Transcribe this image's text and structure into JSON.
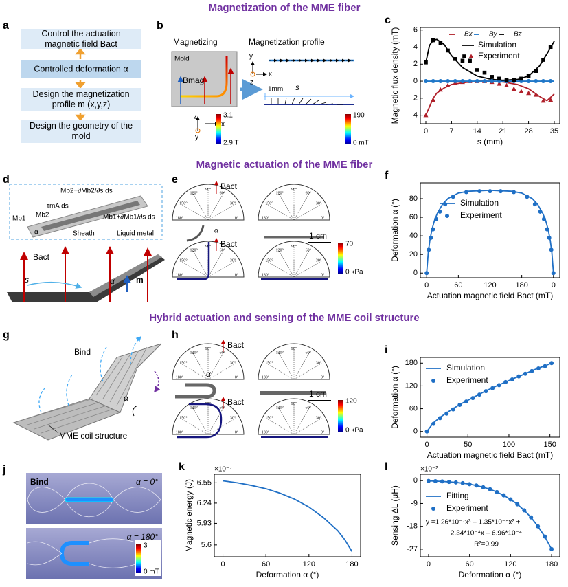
{
  "headings": [
    "Magnetization of the MME fiber",
    "Magnetic actuation of the MME fiber",
    "Hybrid actuation and sensing of the MME coil structure"
  ],
  "panels": {
    "a": {
      "label": "a",
      "steps": [
        [
          "Control the actuation",
          "magnetic field Bact"
        ],
        [
          "Controlled deformation α"
        ],
        [
          "Design the magnetization",
          "profile m (x,y,z)"
        ],
        [
          "Design the geometry of the",
          "mold"
        ]
      ]
    },
    "b": {
      "label": "b",
      "titles": [
        "Magnetizing",
        "Magnetization profile"
      ],
      "mold": "Mold",
      "field": "Bmag",
      "axes": [
        "z",
        "x",
        "y"
      ],
      "colorbar1": [
        "3.1",
        "2.9 T"
      ],
      "colorbar2": [
        "190",
        "0 mT"
      ],
      "scale": "1mm",
      "arc": "s"
    },
    "d": {
      "label": "d",
      "inset": [
        "Mb1",
        "Mb2",
        "Mb2+∂Mb2/∂s ds",
        "τmA ds",
        "Mb1+∂Mb1/∂s ds",
        "α",
        "Sheath",
        "Liquid metal"
      ],
      "field": "Bact",
      "arc": "s",
      "angle": "α",
      "moment": "m"
    },
    "e": {
      "label": "e",
      "angles": [
        "180°",
        "150°",
        "120°",
        "90°",
        "60°",
        "30°",
        "0°"
      ],
      "field": "Bact",
      "angle": "α",
      "scale": "1 cm",
      "colorbar": [
        "70",
        "0 kPa"
      ]
    },
    "g": {
      "label": "g",
      "field": "Bind",
      "angle": "α",
      "name": "MME coil structure"
    },
    "h": {
      "label": "h",
      "field": "Bact",
      "angle": "α",
      "scale": "1 cm",
      "colorbar": [
        "120",
        "0 kPa"
      ]
    },
    "j": {
      "label": "j",
      "field": "Bind",
      "states": [
        "α = 0°",
        "α = 180°"
      ],
      "colorbar": [
        "3",
        "0 mT"
      ]
    }
  },
  "chart_data": [
    {
      "type": "line",
      "panel_label": "c",
      "xlabel": "s (mm)",
      "ylabel": "Magnetic flux density (mT)",
      "xlim": [
        -1.5,
        36.5
      ],
      "xticks": [
        0,
        7,
        14,
        21,
        28,
        35
      ],
      "ylim": [
        -5,
        6.3
      ],
      "yticks": [
        -4,
        -2,
        0,
        2,
        4,
        6
      ],
      "legend_labels": [
        "Simulation",
        "Experiment"
      ],
      "series": [
        {
          "name": "Bx",
          "color": "#b0202a",
          "style": "line",
          "x": [
            0,
            1,
            2,
            3,
            5,
            7,
            10,
            14,
            18,
            21,
            25,
            28,
            31,
            33,
            35
          ],
          "values": [
            -4.0,
            -3.0,
            -2.0,
            -1.4,
            -0.8,
            -0.4,
            -0.2,
            0,
            0,
            -0.1,
            -0.4,
            -0.9,
            -1.8,
            -2.3,
            -1.5
          ]
        },
        {
          "name": "By",
          "color": "#1f77c8",
          "style": "line",
          "x": [
            0,
            1,
            2,
            3,
            5,
            7,
            10,
            14,
            18,
            21,
            25,
            28,
            31,
            33,
            35
          ],
          "values": [
            0,
            0,
            0,
            0,
            0,
            0,
            0,
            0,
            0,
            0,
            0,
            0,
            0,
            0,
            0
          ]
        },
        {
          "name": "Bz",
          "color": "#000000",
          "style": "line",
          "x": [
            0,
            1,
            2,
            3,
            5,
            7,
            10,
            14,
            18,
            21,
            25,
            28,
            31,
            33,
            35
          ],
          "values": [
            2.2,
            4.2,
            4.8,
            4.9,
            4.3,
            3.0,
            1.6,
            0.6,
            0.2,
            0.1,
            0.2,
            0.6,
            1.8,
            3.2,
            4.7
          ]
        },
        {
          "color": "#b0202a",
          "style": "markers",
          "marker": "triangle",
          "x": [
            0,
            2,
            4,
            6,
            8,
            10,
            12,
            14,
            16,
            18,
            20,
            22,
            24,
            26,
            28,
            30,
            32,
            34
          ],
          "values": [
            -4.0,
            -2.2,
            -1.0,
            -0.5,
            -0.2,
            -0.1,
            0,
            0,
            0,
            -0.1,
            -0.3,
            -0.5,
            -0.9,
            -1.2,
            -1.4,
            -1.6,
            -2.3,
            -2.2
          ]
        },
        {
          "color": "#1f77c8",
          "style": "markers",
          "marker": "circle",
          "x": [
            0,
            2,
            4,
            6,
            8,
            10,
            12,
            14,
            16,
            18,
            20,
            22,
            24,
            26,
            28,
            30,
            32,
            34
          ],
          "values": [
            0,
            0,
            0,
            0,
            0,
            0,
            0,
            0,
            0,
            0,
            0,
            0,
            0,
            0,
            0,
            0,
            0,
            0
          ]
        },
        {
          "color": "#000000",
          "style": "markers",
          "marker": "square",
          "x": [
            0,
            2,
            4,
            6,
            8,
            10,
            12,
            14,
            16,
            18,
            20,
            22,
            24,
            26,
            28,
            30,
            32,
            34
          ],
          "values": [
            2.2,
            4.8,
            4.5,
            3.6,
            2.6,
            2.4,
            2.4,
            1.3,
            1.0,
            0.5,
            0.3,
            0.1,
            0.1,
            0.3,
            0.6,
            1.2,
            2.5,
            4.0
          ]
        }
      ]
    },
    {
      "type": "line",
      "panel_label": "f",
      "xlabel": "Actuation magnetic field Bact (mT)",
      "ylabel": "Deformation α (°)",
      "xlim": [
        -12,
        252
      ],
      "xticks": [
        0,
        60,
        120,
        180,
        {
          "value": 240,
          "label": "0"
        }
      ],
      "ylim": [
        -5,
        97
      ],
      "yticks": [
        0,
        20,
        40,
        60,
        80
      ],
      "series": [
        {
          "name": "Simulation",
          "color": "#1f6fc5",
          "style": "line",
          "x": [
            0,
            3,
            6,
            10,
            15,
            20,
            30,
            40,
            60,
            80,
            120,
            160,
            180,
            200,
            210,
            220,
            225,
            230,
            234,
            237,
            240
          ],
          "values": [
            0,
            22,
            35,
            47,
            57,
            64,
            74,
            80,
            86,
            88,
            89,
            88,
            86,
            80,
            74,
            64,
            57,
            47,
            35,
            22,
            0
          ]
        },
        {
          "name": "Experiment",
          "color": "#1f6fc5",
          "style": "markers",
          "marker": "circle",
          "x": [
            0,
            4,
            8,
            12,
            18,
            25,
            35,
            50,
            75,
            100,
            120,
            140,
            165,
            190,
            205,
            215,
            222,
            228,
            232,
            236,
            240
          ],
          "values": [
            0,
            25,
            38,
            47,
            58,
            66,
            74,
            82,
            87,
            88,
            88,
            88,
            87,
            82,
            74,
            66,
            58,
            47,
            38,
            25,
            0
          ]
        }
      ]
    },
    {
      "type": "line",
      "panel_label": "i",
      "xlabel": "Actuation magnetic field Bact (mT)",
      "ylabel": "Deformation α (°)",
      "xlim": [
        -8,
        162
      ],
      "xticks": [
        0,
        50,
        100,
        150
      ],
      "ylim": [
        -15,
        195
      ],
      "yticks": [
        0,
        60,
        120,
        180
      ],
      "series": [
        {
          "name": "Simulation",
          "color": "#1f6fc5",
          "style": "line",
          "x": [
            0,
            8,
            16,
            24,
            32,
            40,
            48,
            56,
            64,
            72,
            80,
            88,
            96,
            104,
            112,
            120,
            128,
            136,
            144,
            152
          ],
          "values": [
            0,
            23,
            37,
            49,
            60,
            71,
            80,
            89,
            98,
            107,
            115,
            123,
            130,
            138,
            145,
            152,
            160,
            167,
            173,
            180
          ]
        },
        {
          "name": "Experiment",
          "color": "#1f6fc5",
          "style": "markers",
          "marker": "circle",
          "x": [
            0,
            8,
            16,
            24,
            32,
            40,
            48,
            56,
            64,
            72,
            80,
            88,
            96,
            104,
            112,
            120,
            128,
            136,
            144,
            152
          ],
          "values": [
            0,
            20,
            35,
            47,
            58,
            70,
            79,
            88,
            97,
            106,
            114,
            122,
            130,
            137,
            145,
            152,
            159,
            166,
            172,
            180
          ]
        }
      ]
    },
    {
      "type": "line",
      "panel_label": "k",
      "xlabel": "Deformation α (°)",
      "ylabel": "Magnetic energy (J)",
      "offset_label": "×10⁻⁷",
      "xlim": [
        -12,
        192
      ],
      "xticks": [
        0,
        60,
        120,
        180
      ],
      "ylim": [
        5.42,
        6.68
      ],
      "yticks": [
        5.6,
        5.93,
        6.24,
        6.55
      ],
      "series": [
        {
          "color": "#1f6fc5",
          "style": "line",
          "x": [
            0,
            20,
            40,
            60,
            80,
            100,
            120,
            140,
            160,
            170,
            180
          ],
          "values": [
            6.58,
            6.55,
            6.51,
            6.46,
            6.39,
            6.3,
            6.18,
            6.02,
            5.82,
            5.68,
            5.5
          ]
        }
      ]
    },
    {
      "type": "line",
      "panel_label": "l",
      "xlabel": "Deformation α (°)",
      "ylabel": "Sensing ΔL (μH)",
      "offset_label": "×10⁻²",
      "xlim": [
        -12,
        192
      ],
      "xticks": [
        0,
        60,
        120,
        180
      ],
      "ylim": [
        -30,
        2.5
      ],
      "yticks": [
        0,
        -9,
        -18,
        -27
      ],
      "annotation": [
        "y =1.26*10⁻⁷x³ – 1.35*10⁻⁵x² +",
        "2.34*10⁻⁴x – 6.96*10⁻⁴",
        "R²=0.99"
      ],
      "series": [
        {
          "name": "Fitting",
          "color": "#1f6fc5",
          "style": "line",
          "x": [
            0,
            10,
            20,
            30,
            40,
            50,
            60,
            70,
            80,
            90,
            100,
            110,
            120,
            130,
            140,
            150,
            160,
            170,
            180
          ],
          "values": [
            -0.1,
            -0.2,
            -0.3,
            -0.5,
            -0.7,
            -1,
            -1.4,
            -1.9,
            -2.6,
            -3.4,
            -4.5,
            -5.8,
            -7.4,
            -9.3,
            -11.7,
            -14.5,
            -18,
            -22,
            -27
          ]
        },
        {
          "name": "Experiment",
          "color": "#1f6fc5",
          "style": "markers",
          "marker": "circle",
          "x": [
            0,
            10,
            20,
            30,
            40,
            50,
            60,
            70,
            80,
            90,
            100,
            110,
            120,
            130,
            140,
            150,
            160,
            170,
            180
          ],
          "values": [
            -0.1,
            -0.2,
            -0.3,
            -0.5,
            -0.7,
            -1,
            -1.4,
            -1.9,
            -2.6,
            -3.4,
            -4.5,
            -5.8,
            -7.4,
            -9.3,
            -11.7,
            -14.5,
            -18,
            -22,
            -27
          ]
        }
      ]
    }
  ]
}
